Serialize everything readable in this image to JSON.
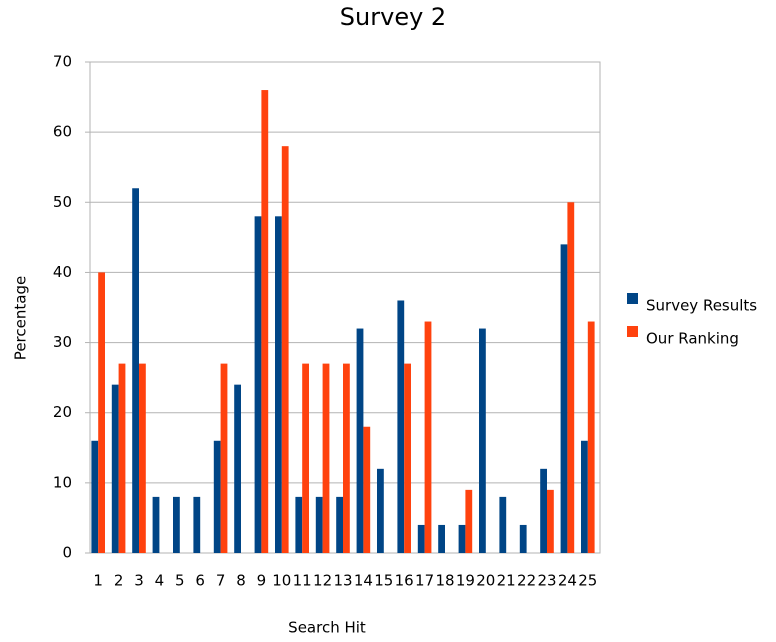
{
  "chart_data": {
    "type": "bar",
    "title": "Survey 2",
    "x_label": "Search Hit",
    "y_label": "Percentage",
    "categories": [
      "1",
      "2",
      "3",
      "4",
      "5",
      "6",
      "7",
      "8",
      "9",
      "10",
      "11",
      "12",
      "13",
      "14",
      "15",
      "16",
      "17",
      "18",
      "19",
      "20",
      "21",
      "22",
      "23",
      "24",
      "25"
    ],
    "series": [
      {
        "name": "Survey Results",
        "color": "#004586",
        "values": [
          16,
          24,
          52,
          8,
          8,
          8,
          16,
          24,
          48,
          48,
          8,
          8,
          8,
          32,
          12,
          36,
          4,
          4,
          4,
          32,
          8,
          4,
          12,
          44,
          16
        ]
      },
      {
        "name": "Our Ranking",
        "color": "#ff420e",
        "values": [
          40,
          27,
          27,
          0,
          0,
          0,
          27,
          0,
          66,
          58,
          27,
          27,
          27,
          18,
          0,
          27,
          33,
          0,
          9,
          0,
          0,
          0,
          9,
          50,
          33
        ]
      }
    ],
    "ylim": [
      0,
      70
    ],
    "yticks": [
      0,
      10,
      20,
      30,
      40,
      50,
      60,
      70
    ],
    "grid": true,
    "legend": "right"
  }
}
